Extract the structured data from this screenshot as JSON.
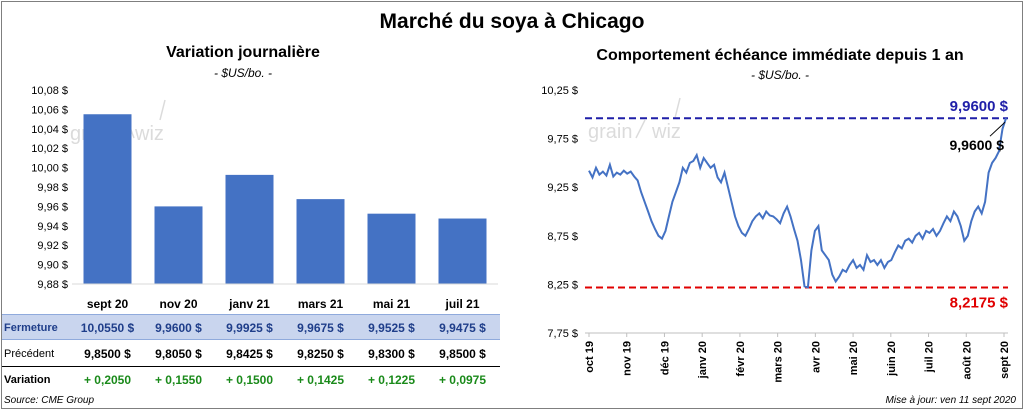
{
  "title": "Marché du soya à Chicago",
  "colors": {
    "bar": "#4472C4",
    "line": "#4472C4",
    "high": "#1F1FA8",
    "low": "#E00000",
    "positive": "#1A8A1A",
    "table_highlight": "#C9D5EE"
  },
  "source": "Source: CME Group",
  "updated": "Mise à jour: ven 11 sept 2020",
  "left_panel": {
    "title": "Variation  journalière",
    "unit": "- $US/bo. -"
  },
  "right_panel": {
    "title": "Comportement  échéance immédiate depuis 1 an",
    "unit": "- $US/bo. -",
    "high_label": "9,9600  $",
    "low_label": "8,2175  $",
    "last_label": "9,9600 $"
  },
  "table": {
    "rows": [
      {
        "label": "Fermeture",
        "values": [
          "10,0550  $",
          "9,9600  $",
          "9,9925  $",
          "9,9675  $",
          "9,9525  $",
          "9,9475  $"
        ]
      },
      {
        "label": "Précédent",
        "values": [
          "9,8500  $",
          "9,8050  $",
          "9,8425  $",
          "9,8250  $",
          "9,8300  $",
          "9,8500  $"
        ]
      },
      {
        "label": "Variation",
        "values": [
          "+ 0,2050",
          "+ 0,1550",
          "+ 0,1500",
          "+ 0,1425",
          "+ 0,1225",
          "+ 0,0975"
        ]
      }
    ]
  },
  "chart_data": [
    {
      "type": "bar",
      "categories": [
        "sept 20",
        "nov 20",
        "janv 21",
        "mars 21",
        "mai 21",
        "juil 21"
      ],
      "values": [
        10.055,
        9.96,
        9.9925,
        9.9675,
        9.9525,
        9.9475
      ],
      "ylim": [
        9.88,
        10.08
      ],
      "yticks": [
        "10,08 $",
        "10,06 $",
        "10,04 $",
        "10,02 $",
        "10,00 $",
        "9,98 $",
        "9,96 $",
        "9,94 $",
        "9,92 $",
        "9,90 $",
        "9,88 $"
      ],
      "grid": false
    },
    {
      "type": "line",
      "ylim": [
        7.75,
        10.25
      ],
      "yticks": [
        "10,25 $",
        "9,75 $",
        "9,25 $",
        "8,75 $",
        "8,25 $",
        "7,75 $"
      ],
      "xticks": [
        "oct 19",
        "nov 19",
        "déc 19",
        "janv 20",
        "févr 20",
        "mars 20",
        "avr 20",
        "mai 20",
        "juin 20",
        "juil 20",
        "août 20",
        "sept 20"
      ],
      "reference_lines": [
        9.96,
        8.2175
      ],
      "series": [
        {
          "values": [
            9.42,
            9.35,
            9.45,
            9.38,
            9.41,
            9.37,
            9.48,
            9.36,
            9.4,
            9.38,
            9.42,
            9.39,
            9.41,
            9.36,
            9.32,
            9.2,
            9.1,
            9.0,
            8.9,
            8.82,
            8.75,
            8.72,
            8.8,
            8.95,
            9.1,
            9.2,
            9.3,
            9.45,
            9.4,
            9.5,
            9.52,
            9.58,
            9.45,
            9.55,
            9.5,
            9.45,
            9.48,
            9.35,
            9.3,
            9.4,
            9.25,
            9.1,
            8.95,
            8.85,
            8.78,
            8.75,
            8.82,
            8.9,
            8.95,
            8.98,
            8.93,
            9.0,
            8.96,
            8.95,
            8.92,
            8.88,
            8.98,
            9.05,
            8.95,
            8.82,
            8.7,
            8.5,
            8.23,
            8.22,
            8.6,
            8.8,
            8.85,
            8.6,
            8.55,
            8.5,
            8.35,
            8.28,
            8.33,
            8.4,
            8.38,
            8.45,
            8.5,
            8.42,
            8.45,
            8.4,
            8.55,
            8.48,
            8.5,
            8.45,
            8.5,
            8.42,
            8.48,
            8.5,
            8.58,
            8.65,
            8.62,
            8.7,
            8.72,
            8.68,
            8.75,
            8.78,
            8.72,
            8.8,
            8.78,
            8.82,
            8.75,
            8.8,
            8.88,
            8.95,
            8.9,
            9.0,
            8.95,
            8.85,
            8.7,
            8.75,
            8.9,
            9.0,
            9.05,
            8.98,
            9.1,
            9.4,
            9.5,
            9.55,
            9.62,
            9.85,
            9.96
          ]
        }
      ]
    }
  ]
}
